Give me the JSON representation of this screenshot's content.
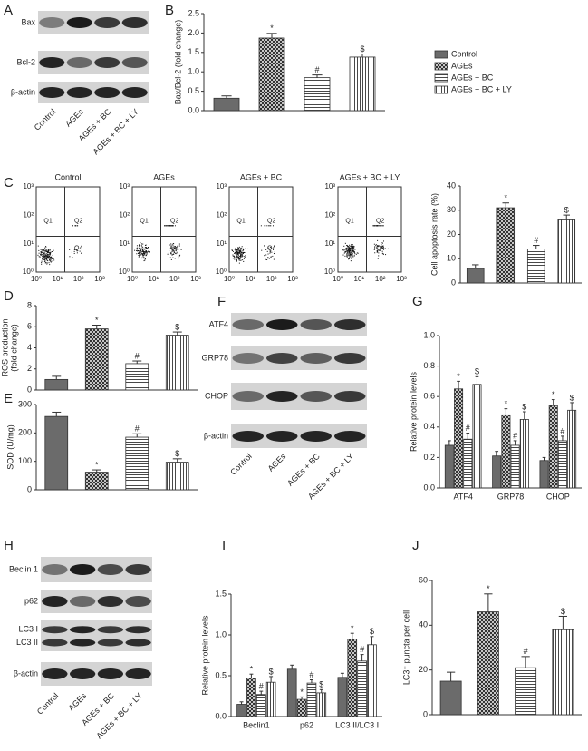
{
  "panel_labels": [
    "A",
    "B",
    "C",
    "D",
    "E",
    "F",
    "G",
    "H",
    "I",
    "J"
  ],
  "blots": [
    {
      "rows": [
        "Bax",
        "Bcl-2",
        "β-actin"
      ],
      "lanes": [
        "Control",
        "AGEs",
        "AGEs + BC",
        "AGEs + BC + LY"
      ]
    },
    {
      "rows": [
        "ATF4",
        "GRP78",
        "CHOP",
        "β-actin"
      ],
      "lanes": [
        "Control",
        "AGEs",
        "AGEs + BC",
        "AGEs + BC + LY"
      ]
    },
    {
      "rows": [
        "Beclin 1",
        "p62",
        [
          "LC3 I",
          "LC3 II"
        ],
        "β-actin"
      ],
      "lanes": [
        "Control",
        "AGEs",
        "AGEs + BC",
        "AGEs + BC + LY"
      ]
    }
  ],
  "flow": {
    "titles": [
      "Control",
      "AGEs",
      "AGEs + BC",
      "AGEs + BC + LY"
    ],
    "ticks": [
      "10⁰",
      "10¹",
      "10²",
      "10³"
    ],
    "quadrants": [
      "Q1",
      "Q2",
      "Q4"
    ]
  },
  "chart_data": [
    {
      "type": "bar",
      "ylabel": [
        "Bax/Bcl-2 (fold change)"
      ],
      "ylim": [
        0,
        2.5
      ],
      "yticks": [
        {
          "value": 0,
          "label": "0.0"
        },
        0.5,
        {
          "value": 1,
          "label": "1.0"
        },
        1.5,
        {
          "value": 2,
          "label": "2.0"
        },
        2.5
      ],
      "values": [
        0.32,
        1.87,
        0.85,
        1.38
      ],
      "errors": [
        0.06,
        0.12,
        0.07,
        0.08
      ],
      "annotations": [
        null,
        "*",
        "#",
        "$"
      ],
      "legend": [
        "Control",
        "AGEs",
        "AGEs + BC",
        "AGEs + BC + LY"
      ]
    },
    {
      "type": "bar",
      "ylabel": [
        "Cell apoptosis rate (%)"
      ],
      "ylim": [
        0,
        40
      ],
      "yticks": [
        0,
        10,
        20,
        30,
        40
      ],
      "values": [
        6,
        31,
        14,
        26
      ],
      "errors": [
        1.5,
        2,
        1.5,
        2
      ],
      "annotations": [
        null,
        "*",
        "#",
        "$"
      ]
    },
    {
      "type": "bar",
      "ylabel": [
        "ROS production",
        "(fold change)"
      ],
      "ylim": [
        0,
        8
      ],
      "yticks": [
        0,
        2,
        4,
        6,
        8
      ],
      "values": [
        1.0,
        5.8,
        2.5,
        5.2
      ],
      "errors": [
        0.3,
        0.35,
        0.25,
        0.3
      ],
      "annotations": [
        null,
        "*",
        "#",
        "$"
      ]
    },
    {
      "type": "bar",
      "ylabel": [
        "SOD (U/mg)"
      ],
      "ylim": [
        0,
        300
      ],
      "yticks": [
        0,
        100,
        200,
        300
      ],
      "values": [
        258,
        62,
        185,
        97
      ],
      "errors": [
        15,
        8,
        12,
        12
      ],
      "annotations": [
        null,
        "*",
        "#",
        "$"
      ]
    },
    {
      "type": "grouped_bar",
      "ylabel": [
        "Relative protein levels"
      ],
      "ylim": [
        0,
        1.0
      ],
      "yticks": [
        {
          "value": 0,
          "label": "0.0"
        },
        0.2,
        0.4,
        0.6,
        0.8,
        {
          "value": 1,
          "label": "1.0"
        }
      ],
      "categories": [
        "ATF4",
        "GRP78",
        "CHOP"
      ],
      "series": [
        {
          "values": [
            0.28,
            0.21,
            0.18
          ],
          "errors": [
            0.03,
            0.03,
            0.02
          ]
        },
        {
          "values": [
            0.65,
            0.48,
            0.54
          ],
          "errors": [
            0.05,
            0.04,
            0.04
          ],
          "annotations": [
            "*",
            "*",
            "*"
          ]
        },
        {
          "values": [
            0.32,
            0.28,
            0.31
          ],
          "errors": [
            0.04,
            0.03,
            0.03
          ],
          "annotations": [
            "#",
            "#",
            "#"
          ]
        },
        {
          "values": [
            0.68,
            0.45,
            0.51
          ],
          "errors": [
            0.05,
            0.05,
            0.05
          ],
          "annotations": [
            "$",
            "$",
            "$"
          ]
        }
      ]
    },
    {
      "type": "grouped_bar",
      "ylabel": [
        "Relative protein levels"
      ],
      "ylim": [
        0,
        1.5
      ],
      "yticks": [
        {
          "value": 0,
          "label": "0.0"
        },
        0.5,
        {
          "value": 1,
          "label": "1.0"
        },
        1.5
      ],
      "categories": [
        "Beclin1",
        "p62",
        "LC3 II/LC3 I"
      ],
      "series": [
        {
          "values": [
            0.15,
            0.58,
            0.48
          ],
          "errors": [
            0.03,
            0.05,
            0.05
          ]
        },
        {
          "values": [
            0.47,
            0.21,
            0.95
          ],
          "errors": [
            0.05,
            0.03,
            0.07
          ],
          "annotations": [
            "*",
            "*",
            "*"
          ]
        },
        {
          "values": [
            0.27,
            0.41,
            0.68
          ],
          "errors": [
            0.04,
            0.04,
            0.08
          ],
          "annotations": [
            "#",
            "#",
            "#"
          ]
        },
        {
          "values": [
            0.42,
            0.29,
            0.88
          ],
          "errors": [
            0.07,
            0.04,
            0.1
          ],
          "annotations": [
            "$",
            "$",
            "$"
          ]
        }
      ]
    },
    {
      "type": "bar",
      "ylabel": [
        "LC3⁺ puncta per cell"
      ],
      "ylim": [
        0,
        60
      ],
      "yticks": [
        0,
        20,
        40,
        60
      ],
      "values": [
        15,
        46,
        21,
        38
      ],
      "errors": [
        4,
        8,
        5,
        6
      ],
      "annotations": [
        null,
        "*",
        "#",
        "$"
      ]
    }
  ]
}
